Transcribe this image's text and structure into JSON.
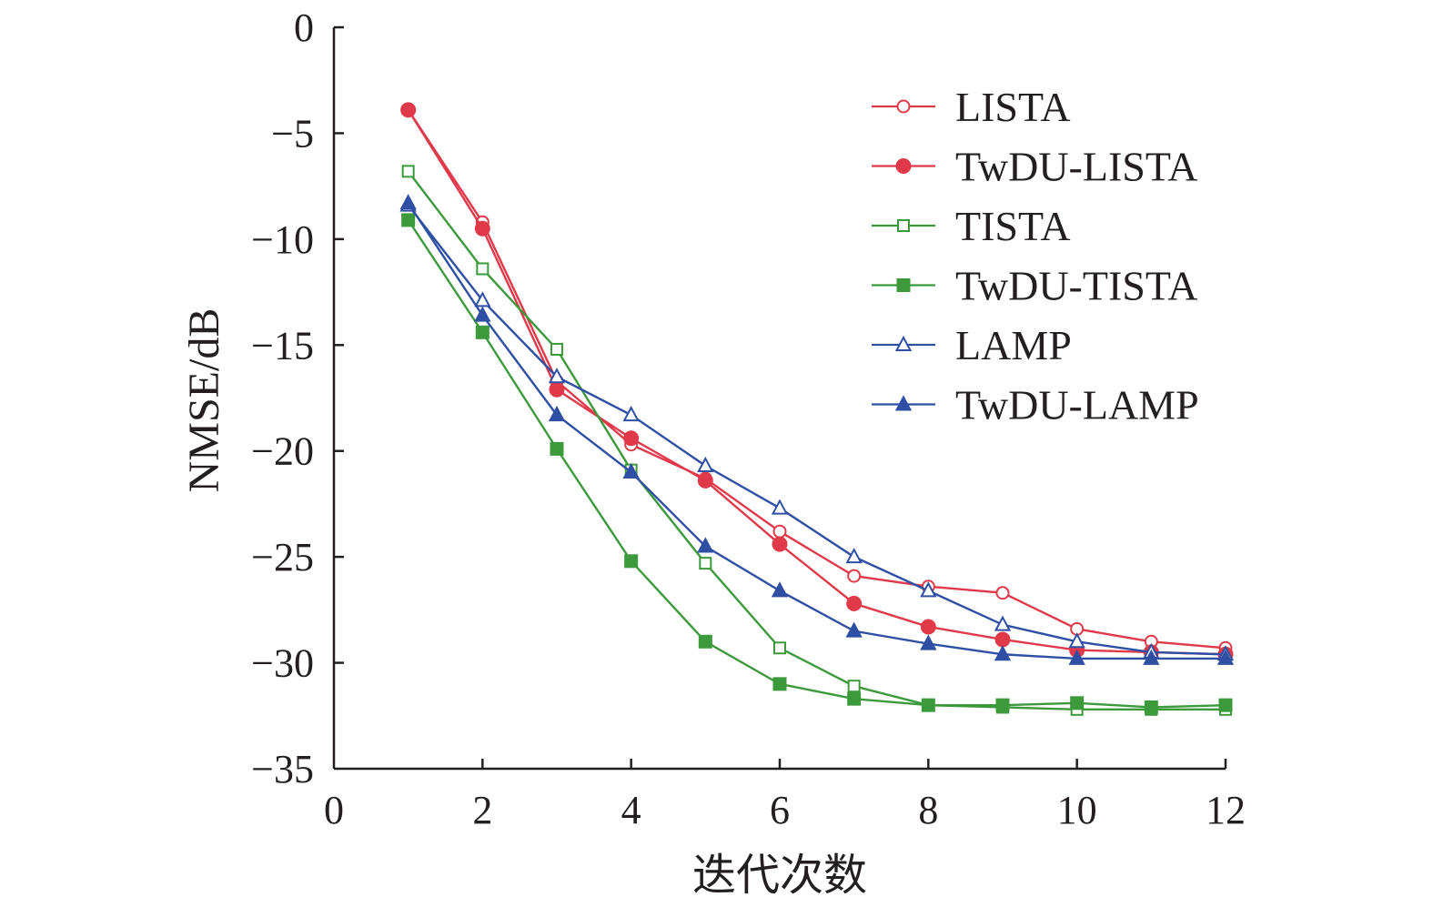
{
  "chart_data": {
    "type": "line",
    "title": "",
    "xlabel": "迭代次数",
    "ylabel": "NMSE/dB",
    "xlim": [
      0,
      12
    ],
    "ylim": [
      -35,
      0
    ],
    "xticks": [
      0,
      2,
      4,
      6,
      8,
      10,
      12
    ],
    "yticks": [
      0,
      -5,
      -10,
      -15,
      -20,
      -25,
      -30,
      -35
    ],
    "ytick_labels": [
      "0",
      "−5",
      "−10",
      "−15",
      "−20",
      "−25",
      "−30",
      "−35"
    ],
    "grid": false,
    "legend_position": "top-right",
    "x": [
      1,
      2,
      3,
      4,
      5,
      6,
      7,
      8,
      9,
      10,
      11,
      12
    ],
    "series": [
      {
        "name": "LISTA",
        "color": "#e03a4a",
        "marker": "circle",
        "filled": false,
        "values": [
          -3.9,
          -9.2,
          -16.7,
          -19.7,
          -21.3,
          -23.8,
          -25.9,
          -26.4,
          -26.7,
          -28.4,
          -29.0,
          -29.3
        ]
      },
      {
        "name": "TwDU-LISTA",
        "color": "#e03a4a",
        "marker": "circle",
        "filled": true,
        "values": [
          -3.9,
          -9.5,
          -17.1,
          -19.4,
          -21.4,
          -24.4,
          -27.2,
          -28.3,
          -28.9,
          -29.4,
          -29.5,
          -29.6
        ]
      },
      {
        "name": "TISTA",
        "color": "#3c9a3c",
        "marker": "square",
        "filled": false,
        "values": [
          -6.8,
          -11.4,
          -15.2,
          -20.9,
          -25.3,
          -29.3,
          -31.1,
          -32.0,
          -32.1,
          -32.2,
          -32.2,
          -32.2
        ]
      },
      {
        "name": "TwDU-TISTA",
        "color": "#3c9a3c",
        "marker": "square",
        "filled": true,
        "values": [
          -9.1,
          -14.4,
          -19.9,
          -25.2,
          -29.0,
          -31.0,
          -31.7,
          -32.0,
          -32.0,
          -31.9,
          -32.1,
          -32.0
        ]
      },
      {
        "name": "LAMP",
        "color": "#2e4fa3",
        "marker": "triangle",
        "filled": false,
        "values": [
          -8.4,
          -12.9,
          -16.5,
          -18.3,
          -20.7,
          -22.7,
          -25.0,
          -26.6,
          -28.2,
          -29.0,
          -29.5,
          -29.6
        ]
      },
      {
        "name": "TwDU-LAMP",
        "color": "#2e4fa3",
        "marker": "triangle",
        "filled": true,
        "values": [
          -8.3,
          -13.6,
          -18.3,
          -21.0,
          -24.5,
          -26.6,
          -28.5,
          -29.1,
          -29.6,
          -29.8,
          -29.8,
          -29.8
        ]
      }
    ]
  }
}
